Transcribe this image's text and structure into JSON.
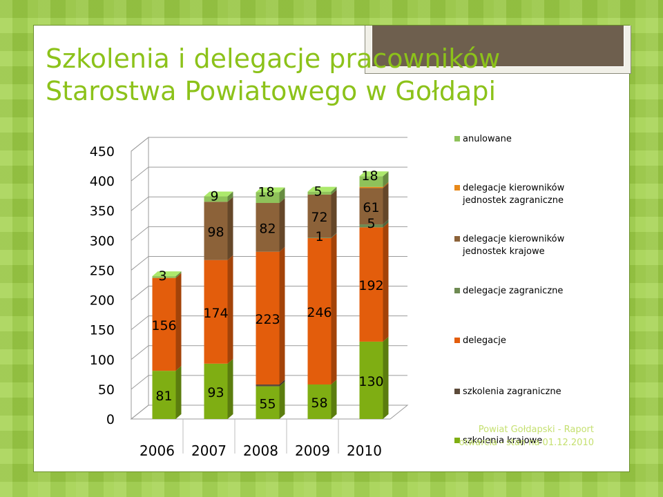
{
  "slide": {
    "title_line1": "Szkolenia i delegacje pracowników",
    "title_line2": "Starostwa Powiatowego w Gołdapi",
    "footer": "Powiat Gołdapski - Raport otwarcia - stan na 01.12.2010"
  },
  "colors": {
    "background": "#9fd047",
    "title": "#8cc21a",
    "footer": "#c5e070"
  },
  "chart_data": {
    "type": "bar",
    "stacked": true,
    "three_d": true,
    "categories": [
      "2006",
      "2007",
      "2008",
      "2009",
      "2010"
    ],
    "ylim": [
      0,
      450
    ],
    "yticks": [
      0,
      50,
      100,
      150,
      200,
      250,
      300,
      350,
      400,
      450
    ],
    "grid": true,
    "legend_position": "right",
    "series": [
      {
        "name": "szkolenia krajowe",
        "color": "#7fae13",
        "values": [
          81,
          93,
          55,
          58,
          130
        ]
      },
      {
        "name": "szkolenia zagraniczne",
        "color": "#5c4a3a",
        "values": [
          0,
          0,
          3,
          0,
          0
        ]
      },
      {
        "name": "delegacje",
        "color": "#e35d0c",
        "values": [
          156,
          174,
          223,
          246,
          192
        ]
      },
      {
        "name": "delegacje zagraniczne",
        "color": "#6e8a52",
        "values": [
          0,
          0,
          0,
          1,
          5
        ]
      },
      {
        "name": "delegacje kierowników jednostek krajowe",
        "color": "#8c6239",
        "values": [
          0,
          98,
          82,
          72,
          61
        ]
      },
      {
        "name": "delegacje kierowników jednostek zagraniczne",
        "color": "#e8891a",
        "values": [
          0,
          0,
          0,
          0,
          2
        ]
      },
      {
        "name": "anulowane",
        "color": "#8fc25a",
        "values": [
          3,
          9,
          18,
          5,
          18
        ]
      }
    ],
    "data_labels": [
      {
        "category": "2006",
        "series": "szkolenia krajowe",
        "text": "81"
      },
      {
        "category": "2006",
        "series": "delegacje",
        "text": "156"
      },
      {
        "category": "2006",
        "series": "anulowane",
        "text": "3"
      },
      {
        "category": "2007",
        "series": "szkolenia krajowe",
        "text": "93"
      },
      {
        "category": "2007",
        "series": "delegacje",
        "text": "174"
      },
      {
        "category": "2007",
        "series": "delegacje kierowników jednostek krajowe",
        "text": "98"
      },
      {
        "category": "2007",
        "series": "anulowane",
        "text": "9"
      },
      {
        "category": "2008",
        "series": "szkolenia krajowe",
        "text": "55"
      },
      {
        "category": "2008",
        "series": "delegacje",
        "text": "223"
      },
      {
        "category": "2008",
        "series": "delegacje kierowników jednostek krajowe",
        "text": "82"
      },
      {
        "category": "2008",
        "series": "anulowane",
        "text": "18"
      },
      {
        "category": "2009",
        "series": "szkolenia krajowe",
        "text": "58"
      },
      {
        "category": "2009",
        "series": "delegacje",
        "text": "246"
      },
      {
        "category": "2009",
        "series": "delegacje zagraniczne",
        "text": "1"
      },
      {
        "category": "2009",
        "series": "delegacje kierowników jednostek krajowe",
        "text": "72"
      },
      {
        "category": "2009",
        "series": "anulowane",
        "text": "5"
      },
      {
        "category": "2010",
        "series": "szkolenia krajowe",
        "text": "130"
      },
      {
        "category": "2010",
        "series": "delegacje",
        "text": "192"
      },
      {
        "category": "2010",
        "series": "delegacje zagraniczne",
        "text": "5"
      },
      {
        "category": "2010",
        "series": "delegacje kierowników jednostek krajowe",
        "text": "61"
      },
      {
        "category": "2010",
        "series": "anulowane",
        "text": "18"
      }
    ]
  }
}
